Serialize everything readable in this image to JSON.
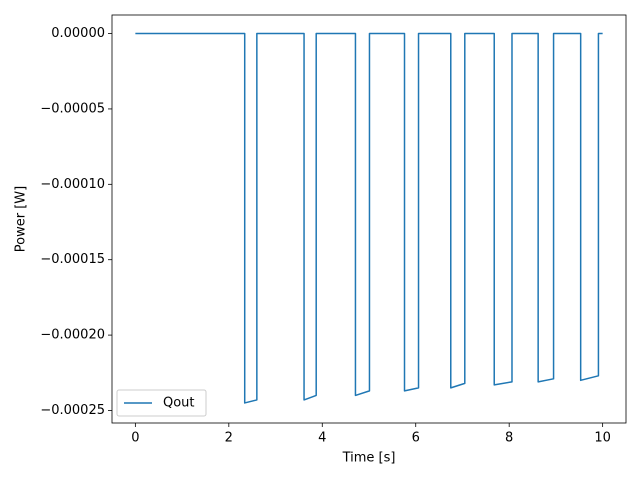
{
  "chart_data": {
    "type": "line",
    "xlabel": "Time [s]",
    "ylabel": "Power [W]",
    "x": [
      0,
      2.34,
      2.34,
      2.6,
      2.6,
      3.61,
      3.61,
      3.87,
      3.87,
      4.71,
      4.71,
      5.01,
      5.01,
      5.76,
      5.76,
      6.06,
      6.06,
      6.75,
      6.75,
      7.05,
      7.05,
      7.68,
      7.68,
      8.06,
      8.06,
      8.62,
      8.62,
      8.95,
      8.95,
      9.53,
      9.53,
      9.91,
      9.91,
      10.0
    ],
    "series": [
      {
        "name": "Qout",
        "color": "#1f77b4",
        "values": [
          0,
          0,
          -0.000245,
          -0.000243,
          0,
          0,
          -0.000243,
          -0.00024,
          0,
          0,
          -0.00024,
          -0.000237,
          0,
          0,
          -0.000237,
          -0.000235,
          0,
          0,
          -0.000235,
          -0.000232,
          0,
          0,
          -0.000233,
          -0.000231,
          0,
          0,
          -0.000231,
          -0.000229,
          0,
          0,
          -0.00023,
          -0.000227,
          0,
          0
        ]
      }
    ],
    "xlim": [
      -0.5,
      10.5
    ],
    "xticks": [
      0,
      2,
      4,
      6,
      8,
      10
    ],
    "ylim": [
      -0.0002583,
      1.23e-05
    ],
    "yticks": [
      {
        "value": 0,
        "label": "0.00000"
      },
      {
        "value": -5e-05,
        "label": "−0.00005"
      },
      {
        "value": -0.0001,
        "label": "−0.00010"
      },
      {
        "value": -0.00015,
        "label": "−0.00015"
      },
      {
        "value": -0.0002,
        "label": "−0.00020"
      },
      {
        "value": -0.00025,
        "label": "−0.00025"
      }
    ],
    "grid": false,
    "legend": "lower left"
  }
}
